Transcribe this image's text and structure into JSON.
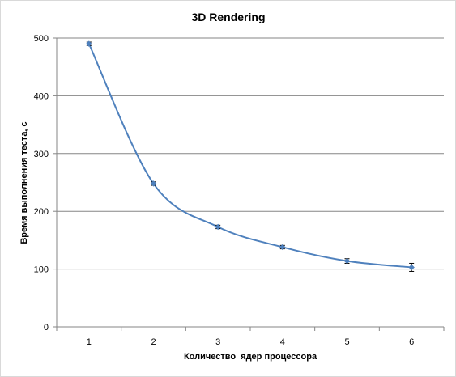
{
  "chart_data": {
    "type": "line",
    "title": "3D Rendering",
    "xlabel": "Количество  ядер процессора",
    "ylabel": "Время выполнения теста, с",
    "x": [
      1,
      2,
      3,
      4,
      5,
      6
    ],
    "series": [
      {
        "values": [
          490,
          248,
          173,
          138,
          114,
          103
        ],
        "error": [
          3,
          3,
          3,
          3,
          4,
          7
        ]
      }
    ],
    "ylim": [
      0,
      500
    ],
    "yticks": [
      0,
      100,
      200,
      300,
      400,
      500
    ],
    "xticks": [
      "1",
      "2",
      "3",
      "4",
      "5",
      "6"
    ],
    "grid": true,
    "legend": "none",
    "colors": {
      "series": "#4f81bd",
      "marker": "#4f81bd",
      "error_bar": "#000000",
      "grid": "#868686",
      "axis": "#868686",
      "border": "#d9d9d9"
    }
  }
}
